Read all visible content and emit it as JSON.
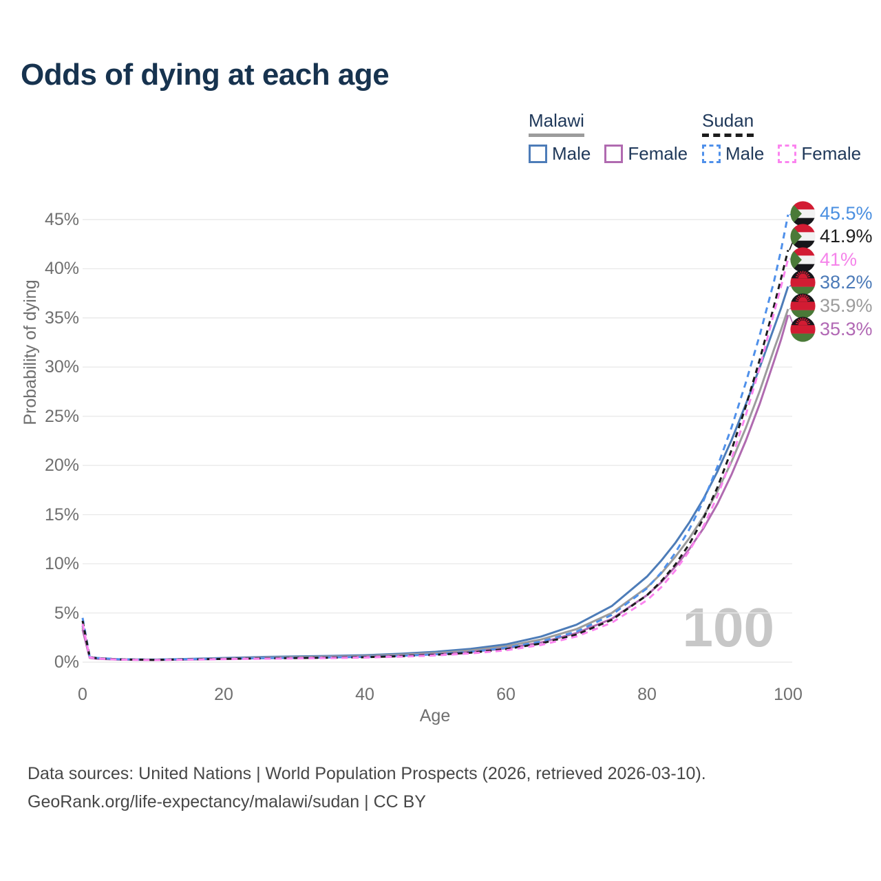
{
  "header": {
    "title": "Odds of dying at each age"
  },
  "legend": {
    "groups": [
      {
        "name": "Malawi",
        "line_style": "solid",
        "underline_color": "#9c9c9c",
        "items": [
          {
            "label": "Male",
            "color": "#4d7cb8",
            "dashed": false
          },
          {
            "label": "Female",
            "color": "#b06ab0",
            "dashed": false
          }
        ]
      },
      {
        "name": "Sudan",
        "line_style": "dashed",
        "underline_color": "#1c1c1c",
        "items": [
          {
            "label": "Male",
            "color": "#4f90ea",
            "dashed": true
          },
          {
            "label": "Female",
            "color": "#fb84ef",
            "dashed": true
          }
        ]
      }
    ]
  },
  "chart_data": {
    "type": "line",
    "title": "Odds of dying at each age",
    "xlabel": "Age",
    "ylabel": "Probability of dying",
    "xlim": [
      0,
      100
    ],
    "ylim": [
      0,
      47
    ],
    "x_ticks": [
      0,
      20,
      40,
      60,
      80,
      100
    ],
    "y_ticks": [
      0,
      5,
      10,
      15,
      20,
      25,
      30,
      35,
      40,
      45
    ],
    "y_tick_suffix": "%",
    "grid": "horizontal",
    "legend_position": "top-right",
    "watermark": "100",
    "series": [
      {
        "id": "sudan-male",
        "country": "Sudan",
        "sex": "male",
        "color": "#4f90ea",
        "dash": "dashed",
        "flag": "sudan",
        "end_label": "45.5%",
        "end_value": 45.5,
        "label_color": "#4a8fe0",
        "points": [
          [
            0,
            4.5
          ],
          [
            1,
            0.56
          ],
          [
            2,
            0.43
          ],
          [
            5,
            0.3
          ],
          [
            10,
            0.25
          ],
          [
            15,
            0.3
          ],
          [
            20,
            0.36
          ],
          [
            25,
            0.41
          ],
          [
            30,
            0.44
          ],
          [
            35,
            0.48
          ],
          [
            40,
            0.54
          ],
          [
            45,
            0.64
          ],
          [
            50,
            0.8
          ],
          [
            55,
            1.05
          ],
          [
            60,
            1.45
          ],
          [
            65,
            2.1
          ],
          [
            70,
            3.1
          ],
          [
            75,
            4.8
          ],
          [
            80,
            7.5
          ],
          [
            82,
            9.1
          ],
          [
            84,
            11.1
          ],
          [
            86,
            13.5
          ],
          [
            88,
            16.4
          ],
          [
            90,
            19.9
          ],
          [
            92,
            23.9
          ],
          [
            94,
            28.4
          ],
          [
            96,
            33.3
          ],
          [
            98,
            38.7
          ],
          [
            99,
            41.9
          ],
          [
            100,
            45.5
          ]
        ]
      },
      {
        "id": "sudan-both",
        "country": "Sudan",
        "sex": "both",
        "color": "#1c1c1c",
        "dash": "dashed",
        "flag": "sudan",
        "end_label": "41.9%",
        "end_value": 41.9,
        "label_color": "#1f1f1f",
        "points": [
          [
            0,
            4.2
          ],
          [
            1,
            0.52
          ],
          [
            2,
            0.4
          ],
          [
            5,
            0.28
          ],
          [
            10,
            0.23
          ],
          [
            15,
            0.28
          ],
          [
            20,
            0.33
          ],
          [
            25,
            0.38
          ],
          [
            30,
            0.41
          ],
          [
            35,
            0.45
          ],
          [
            40,
            0.5
          ],
          [
            45,
            0.6
          ],
          [
            50,
            0.74
          ],
          [
            55,
            0.96
          ],
          [
            60,
            1.32
          ],
          [
            65,
            1.9
          ],
          [
            70,
            2.8
          ],
          [
            75,
            4.3
          ],
          [
            80,
            6.8
          ],
          [
            82,
            8.2
          ],
          [
            84,
            9.9
          ],
          [
            86,
            12.0
          ],
          [
            88,
            14.6
          ],
          [
            90,
            17.8
          ],
          [
            92,
            21.6
          ],
          [
            94,
            26.0
          ],
          [
            96,
            30.8
          ],
          [
            98,
            36.2
          ],
          [
            99,
            39.0
          ],
          [
            100,
            41.9
          ]
        ]
      },
      {
        "id": "sudan-female",
        "country": "Sudan",
        "sex": "female",
        "color": "#fb84ef",
        "dash": "dashed",
        "flag": "sudan",
        "end_label": "41%",
        "end_value": 41.0,
        "label_color": "#f583ea",
        "points": [
          [
            0,
            3.9
          ],
          [
            1,
            0.48
          ],
          [
            2,
            0.37
          ],
          [
            5,
            0.26
          ],
          [
            10,
            0.21
          ],
          [
            15,
            0.25
          ],
          [
            20,
            0.3
          ],
          [
            25,
            0.34
          ],
          [
            30,
            0.37
          ],
          [
            35,
            0.41
          ],
          [
            40,
            0.46
          ],
          [
            45,
            0.55
          ],
          [
            50,
            0.68
          ],
          [
            55,
            0.88
          ],
          [
            60,
            1.2
          ],
          [
            65,
            1.75
          ],
          [
            70,
            2.6
          ],
          [
            75,
            4.0
          ],
          [
            80,
            6.3
          ],
          [
            82,
            7.6
          ],
          [
            84,
            9.3
          ],
          [
            86,
            11.3
          ],
          [
            88,
            13.8
          ],
          [
            90,
            16.9
          ],
          [
            92,
            20.7
          ],
          [
            94,
            25.1
          ],
          [
            96,
            30.0
          ],
          [
            98,
            35.5
          ],
          [
            99,
            38.2
          ],
          [
            100,
            41.0
          ]
        ]
      },
      {
        "id": "malawi-male",
        "country": "Malawi",
        "sex": "male",
        "color": "#4d7cb8",
        "dash": "solid",
        "flag": "malawi",
        "end_label": "38.2%",
        "end_value": 38.2,
        "label_color": "#4b7ab8",
        "points": [
          [
            0,
            3.7
          ],
          [
            1,
            0.5
          ],
          [
            2,
            0.4
          ],
          [
            5,
            0.29
          ],
          [
            10,
            0.25
          ],
          [
            15,
            0.32
          ],
          [
            20,
            0.42
          ],
          [
            25,
            0.52
          ],
          [
            30,
            0.58
          ],
          [
            35,
            0.63
          ],
          [
            40,
            0.7
          ],
          [
            45,
            0.85
          ],
          [
            50,
            1.05
          ],
          [
            55,
            1.35
          ],
          [
            60,
            1.8
          ],
          [
            65,
            2.6
          ],
          [
            70,
            3.8
          ],
          [
            75,
            5.7
          ],
          [
            80,
            8.7
          ],
          [
            82,
            10.3
          ],
          [
            84,
            12.1
          ],
          [
            86,
            14.2
          ],
          [
            88,
            16.6
          ],
          [
            90,
            19.4
          ],
          [
            92,
            22.6
          ],
          [
            94,
            26.2
          ],
          [
            96,
            30.0
          ],
          [
            98,
            34.0
          ],
          [
            99,
            36.0
          ],
          [
            100,
            38.2
          ]
        ]
      },
      {
        "id": "malawi-both",
        "country": "Malawi",
        "sex": "both",
        "color": "#9c9c9c",
        "dash": "solid",
        "flag": "malawi",
        "end_label": "35.9%",
        "end_value": 35.9,
        "label_color": "#9b9b9b",
        "points": [
          [
            0,
            3.5
          ],
          [
            1,
            0.46
          ],
          [
            2,
            0.37
          ],
          [
            5,
            0.27
          ],
          [
            10,
            0.23
          ],
          [
            15,
            0.29
          ],
          [
            20,
            0.37
          ],
          [
            25,
            0.46
          ],
          [
            30,
            0.51
          ],
          [
            35,
            0.56
          ],
          [
            40,
            0.62
          ],
          [
            45,
            0.75
          ],
          [
            50,
            0.92
          ],
          [
            55,
            1.18
          ],
          [
            60,
            1.6
          ],
          [
            65,
            2.3
          ],
          [
            70,
            3.35
          ],
          [
            75,
            5.0
          ],
          [
            80,
            7.6
          ],
          [
            82,
            9.0
          ],
          [
            84,
            10.7
          ],
          [
            86,
            12.6
          ],
          [
            88,
            14.8
          ],
          [
            90,
            17.4
          ],
          [
            92,
            20.4
          ],
          [
            94,
            23.8
          ],
          [
            96,
            27.6
          ],
          [
            98,
            31.8
          ],
          [
            99,
            33.8
          ],
          [
            100,
            35.9
          ]
        ]
      },
      {
        "id": "malawi-female",
        "country": "Malawi",
        "sex": "female",
        "color": "#b06ab0",
        "dash": "solid",
        "flag": "malawi",
        "end_label": "35.3%",
        "end_value": 35.3,
        "label_color": "#b168b4",
        "points": [
          [
            0,
            3.3
          ],
          [
            1,
            0.43
          ],
          [
            2,
            0.34
          ],
          [
            5,
            0.25
          ],
          [
            10,
            0.21
          ],
          [
            15,
            0.26
          ],
          [
            20,
            0.32
          ],
          [
            25,
            0.39
          ],
          [
            30,
            0.43
          ],
          [
            35,
            0.48
          ],
          [
            40,
            0.54
          ],
          [
            45,
            0.65
          ],
          [
            50,
            0.8
          ],
          [
            55,
            1.03
          ],
          [
            60,
            1.4
          ],
          [
            65,
            2.0
          ],
          [
            70,
            2.95
          ],
          [
            75,
            4.4
          ],
          [
            80,
            6.8
          ],
          [
            82,
            8.1
          ],
          [
            84,
            9.7
          ],
          [
            86,
            11.5
          ],
          [
            88,
            13.6
          ],
          [
            90,
            16.1
          ],
          [
            92,
            19.1
          ],
          [
            94,
            22.5
          ],
          [
            96,
            26.3
          ],
          [
            98,
            30.6
          ],
          [
            99,
            32.8
          ],
          [
            100,
            35.3
          ]
        ]
      }
    ]
  },
  "footer": {
    "line1": "Data sources: United Nations | World Population Prospects (2026, retrieved 2026-03-10).",
    "line2": "GeoRank.org/life-expectancy/malawi/sudan | CC BY"
  }
}
